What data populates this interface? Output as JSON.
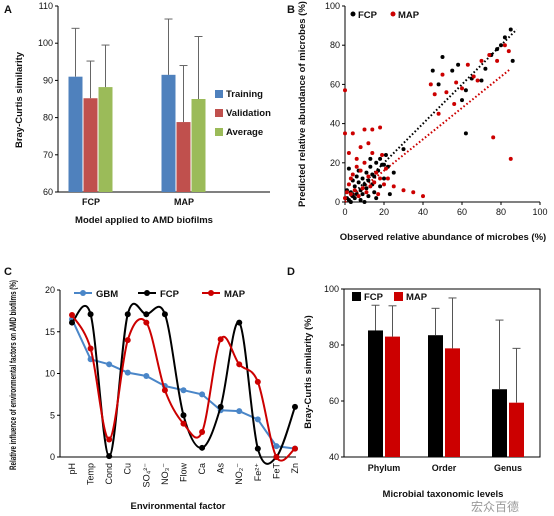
{
  "chart_data": [
    {
      "panel": "A",
      "type": "bar",
      "categories": [
        "FCP",
        "MAP"
      ],
      "series": [
        {
          "name": "Training",
          "values": [
            91,
            91.5
          ],
          "errors": [
            13,
            15
          ],
          "color": "#4f81bd"
        },
        {
          "name": "Validation",
          "values": [
            85.2,
            78.8
          ],
          "errors": [
            10,
            15.2
          ],
          "color": "#c0504d"
        },
        {
          "name": "Average",
          "values": [
            88.2,
            85
          ],
          "errors": [
            11.3,
            16.8
          ],
          "color": "#9bbb59"
        }
      ],
      "title": "",
      "xlabel": "Model applied to AMD biofilms",
      "ylabel": "Bray-Curtis similarity",
      "ylim": [
        60,
        110
      ],
      "yticks": [
        "60",
        "70",
        "80",
        "90",
        "100",
        "110"
      ],
      "legend_position": "right"
    },
    {
      "panel": "B",
      "type": "scatter",
      "xlabel": "Observed relative abundance of microbes (%)",
      "ylabel": "Predicted relative abundance of microbes (%)",
      "xlim": [
        0,
        100
      ],
      "ylim": [
        0,
        100
      ],
      "xticks": [
        "0",
        "20",
        "40",
        "60",
        "80",
        "100"
      ],
      "yticks": [
        "0",
        "20",
        "40",
        "60",
        "80",
        "100"
      ],
      "legend_position": "top-left",
      "series": [
        {
          "name": "FCP",
          "color": "#000000",
          "points": [
            [
              1,
              2
            ],
            [
              2,
              1
            ],
            [
              3,
              5
            ],
            [
              4,
              3
            ],
            [
              5,
              8
            ],
            [
              6,
              4
            ],
            [
              7,
              10
            ],
            [
              8,
              6
            ],
            [
              9,
              12
            ],
            [
              10,
              9
            ],
            [
              11,
              15
            ],
            [
              12,
              11
            ],
            [
              13,
              18
            ],
            [
              14,
              14
            ],
            [
              15,
              13
            ],
            [
              16,
              20
            ],
            [
              17,
              16
            ],
            [
              18,
              22
            ],
            [
              19,
              19
            ],
            [
              20,
              12
            ],
            [
              21,
              24
            ],
            [
              22,
              18
            ],
            [
              5,
              2
            ],
            [
              8,
              1
            ],
            [
              12,
              3
            ],
            [
              3,
              0
            ],
            [
              10,
              0
            ],
            [
              15,
              5
            ],
            [
              18,
              8
            ],
            [
              25,
              15
            ],
            [
              30,
              27
            ],
            [
              45,
              67
            ],
            [
              48,
              60
            ],
            [
              50,
              74
            ],
            [
              55,
              67
            ],
            [
              58,
              70
            ],
            [
              60,
              52
            ],
            [
              62,
              57
            ],
            [
              65,
              63
            ],
            [
              70,
              62
            ],
            [
              72,
              68
            ],
            [
              75,
              75
            ],
            [
              78,
              78
            ],
            [
              80,
              80
            ],
            [
              82,
              84
            ],
            [
              85,
              88
            ],
            [
              86,
              72
            ],
            [
              62,
              35
            ],
            [
              9,
              4
            ],
            [
              14,
              9
            ],
            [
              6,
              13
            ],
            [
              2,
              17
            ],
            [
              1,
              6
            ],
            [
              4,
              11
            ],
            [
              11,
              7
            ],
            [
              16,
              2
            ],
            [
              20,
              19
            ],
            [
              23,
              4
            ],
            [
              7,
              16
            ],
            [
              13,
              22
            ]
          ]
        },
        {
          "name": "MAP",
          "color": "#cc0000",
          "points": [
            [
              0,
              2
            ],
            [
              1,
              5
            ],
            [
              2,
              9
            ],
            [
              3,
              4
            ],
            [
              4,
              14
            ],
            [
              5,
              6
            ],
            [
              6,
              18
            ],
            [
              7,
              3
            ],
            [
              8,
              16
            ],
            [
              9,
              7
            ],
            [
              10,
              20
            ],
            [
              11,
              5
            ],
            [
              12,
              13
            ],
            [
              13,
              8
            ],
            [
              14,
              25
            ],
            [
              15,
              10
            ],
            [
              16,
              15
            ],
            [
              17,
              4
            ],
            [
              18,
              12
            ],
            [
              19,
              24
            ],
            [
              20,
              9
            ],
            [
              21,
              17
            ],
            [
              22,
              12
            ],
            [
              0,
              57
            ],
            [
              0,
              35
            ],
            [
              4,
              35
            ],
            [
              10,
              37
            ],
            [
              14,
              37
            ],
            [
              18,
              38
            ],
            [
              2,
              25
            ],
            [
              8,
              28
            ],
            [
              44,
              60
            ],
            [
              46,
              55
            ],
            [
              50,
              65
            ],
            [
              52,
              56
            ],
            [
              56,
              50
            ],
            [
              57,
              61
            ],
            [
              60,
              58
            ],
            [
              63,
              70
            ],
            [
              66,
              64
            ],
            [
              68,
              62
            ],
            [
              70,
              72
            ],
            [
              74,
              75
            ],
            [
              78,
              72
            ],
            [
              82,
              80
            ],
            [
              84,
              77
            ],
            [
              85,
              22
            ],
            [
              76,
              33
            ],
            [
              48,
              45
            ],
            [
              25,
              8
            ],
            [
              30,
              6
            ],
            [
              35,
              5
            ],
            [
              40,
              3
            ],
            [
              3,
              12
            ],
            [
              6,
              22
            ],
            [
              12,
              30
            ]
          ]
        }
      ],
      "reference_lines": [
        {
          "series": "FCP",
          "from": [
            0,
            0
          ],
          "to": [
            88,
            88
          ],
          "style": "dotted"
        },
        {
          "series": "MAP",
          "from": [
            0,
            0
          ],
          "to": [
            85,
            68
          ],
          "style": "dotted"
        }
      ]
    },
    {
      "panel": "C",
      "type": "line",
      "categories": [
        "pH",
        "Temp",
        "Cond",
        "Cu",
        "SO₄²⁻",
        "NO₃⁻",
        "Flow",
        "Ca",
        "As",
        "NO₂⁻",
        "Fe²⁺",
        "FeT",
        "Zn"
      ],
      "series": [
        {
          "name": "GBM",
          "color": "#4a86c8",
          "values": [
            16.5,
            11.7,
            11.1,
            10.1,
            9.7,
            8.5,
            8.0,
            7.5,
            5.6,
            5.5,
            4.5,
            1.3,
            1.0
          ]
        },
        {
          "name": "FCP",
          "color": "#000000",
          "values": [
            16.1,
            17.1,
            0.1,
            17.1,
            17.1,
            17.1,
            5.0,
            1.1,
            6.0,
            16.1,
            1.0,
            0.0,
            6.0
          ]
        },
        {
          "name": "MAP",
          "color": "#cc0000",
          "values": [
            17.0,
            13.0,
            2.1,
            14.0,
            16.1,
            8.0,
            4.0,
            3.0,
            14.1,
            11.1,
            9.0,
            0.0,
            1.0
          ]
        }
      ],
      "xlabel": "Environmental factor",
      "ylabel": "Relative influence of environmental factors on AMD biofilms (%)",
      "ylim": [
        0,
        20
      ],
      "yticks": [
        "0",
        "5",
        "10",
        "15",
        "20"
      ],
      "legend_position": "top"
    },
    {
      "panel": "D",
      "type": "bar",
      "categories": [
        "Phylum",
        "Order",
        "Genus"
      ],
      "series": [
        {
          "name": "FCP",
          "color": "#000000",
          "values": [
            85.2,
            83.5,
            64.2
          ],
          "errors": [
            9,
            9.6,
            24.7
          ]
        },
        {
          "name": "MAP",
          "color": "#cc0000",
          "values": [
            83,
            78.8,
            59.4
          ],
          "errors": [
            11,
            18,
            19.4
          ]
        }
      ],
      "xlabel": "Microbial taxonomic levels",
      "ylabel": "Bray-Curtis similarity (%)",
      "ylim": [
        40,
        100
      ],
      "yticks": [
        "40",
        "60",
        "80",
        "100"
      ],
      "legend_position": "top-left"
    }
  ],
  "panels": {
    "a": {
      "letter": "A"
    },
    "b": {
      "letter": "B"
    },
    "c": {
      "letter": "C"
    },
    "d": {
      "letter": "D"
    }
  },
  "watermark": "宏众百德"
}
